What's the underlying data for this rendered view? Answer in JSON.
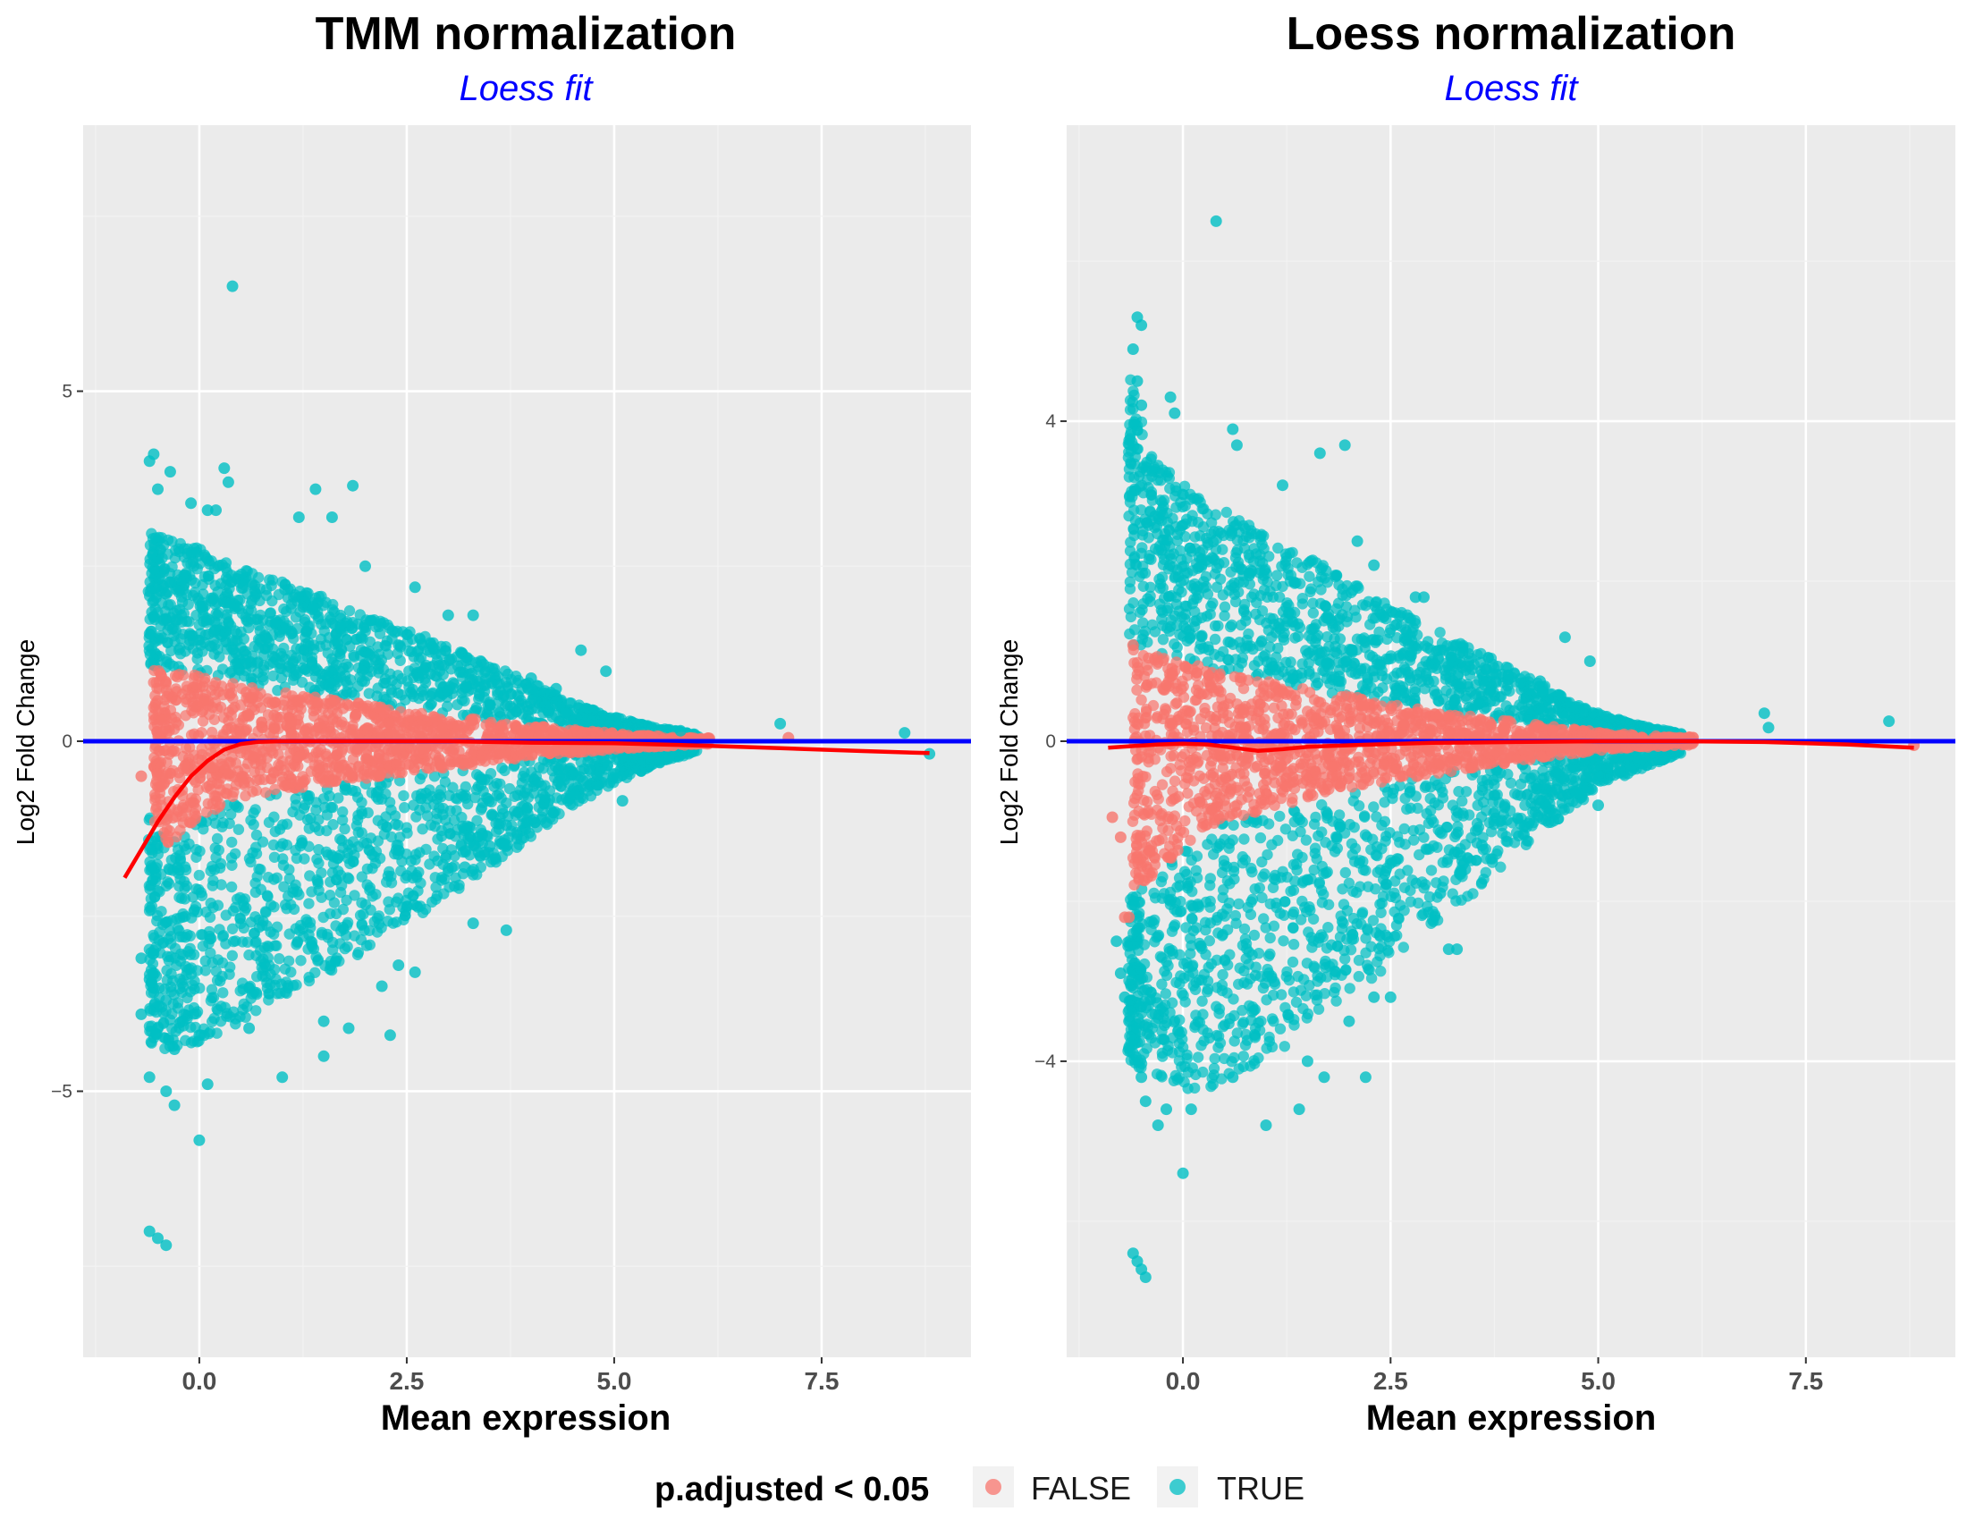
{
  "colors": {
    "false_points": "#F8766D",
    "true_points": "#00BFC4",
    "zero_line": "#0000FF",
    "loess_line": "#FF0000",
    "subtitle": "#0000FF",
    "panel_bg": "#EBEBEB",
    "grid_major": "#FFFFFF",
    "grid_minor": "#F2F2F2"
  },
  "legend": {
    "title": "p.adjusted < 0.05",
    "items": [
      {
        "label": "FALSE",
        "color": "#F8766D"
      },
      {
        "label": "TRUE",
        "color": "#00BFC4"
      }
    ],
    "position": "bottom"
  },
  "chart_data": [
    {
      "type": "scatter",
      "title": "TMM normalization",
      "subtitle": "Loess fit",
      "xlabel": "Mean expression",
      "ylabel": "Log2 Fold Change",
      "xlim": [
        -1.4,
        9.3
      ],
      "ylim": [
        -8.8,
        8.8
      ],
      "x_ticks": [
        0.0,
        2.5,
        5.0,
        7.5
      ],
      "x_tick_labels": [
        "0.0",
        "2.5",
        "5.0",
        "7.5"
      ],
      "y_ticks": [
        -5,
        0,
        5
      ],
      "y_tick_labels": [
        "−5",
        "0",
        "5"
      ],
      "grid": true,
      "hline": 0,
      "envelope": {
        "x": [
          -0.6,
          -0.4,
          0.0,
          0.5,
          1.0,
          1.5,
          2.0,
          2.5,
          3.0,
          3.5,
          4.0,
          4.5,
          5.0,
          5.5,
          6.0
        ],
        "upper": [
          3.0,
          2.9,
          2.75,
          2.5,
          2.3,
          2.05,
          1.8,
          1.6,
          1.35,
          1.1,
          0.85,
          0.55,
          0.35,
          0.2,
          0.1
        ],
        "lower": [
          -4.3,
          -4.4,
          -4.3,
          -4.0,
          -3.7,
          -3.35,
          -3.0,
          -2.6,
          -2.2,
          -1.8,
          -1.35,
          -0.95,
          -0.6,
          -0.35,
          -0.15
        ],
        "false_band": [
          1.1,
          1.0,
          0.95,
          0.8,
          0.7,
          0.62,
          0.55,
          0.45,
          0.38,
          0.3,
          0.23,
          0.17,
          0.12,
          0.08,
          0.05
        ],
        "false_band_low": [
          -1.0,
          -1.5,
          -1.1,
          -0.8,
          -0.7,
          -0.62,
          -0.55,
          -0.45,
          -0.38,
          -0.3,
          -0.23,
          -0.17,
          -0.12,
          -0.08,
          -0.05
        ]
      },
      "series": [
        {
          "name": "TRUE",
          "points": [
            [
              0.4,
              6.5
            ],
            [
              -0.55,
              4.1
            ],
            [
              -0.6,
              4.0
            ],
            [
              -0.35,
              3.85
            ],
            [
              0.3,
              3.9
            ],
            [
              0.35,
              3.7
            ],
            [
              -0.5,
              3.6
            ],
            [
              1.4,
              3.6
            ],
            [
              1.85,
              3.65
            ],
            [
              0.1,
              3.3
            ],
            [
              -0.1,
              3.4
            ],
            [
              0.2,
              3.3
            ],
            [
              1.2,
              3.2
            ],
            [
              1.6,
              3.2
            ],
            [
              2.0,
              2.5
            ],
            [
              2.6,
              2.2
            ],
            [
              3.3,
              1.8
            ],
            [
              3.0,
              1.8
            ],
            [
              4.6,
              1.3
            ],
            [
              4.9,
              1.0
            ],
            [
              4.0,
              0.9
            ],
            [
              4.3,
              0.75
            ],
            [
              5.8,
              0.15
            ],
            [
              7.0,
              0.25
            ],
            [
              8.5,
              0.12
            ],
            [
              8.8,
              -0.18
            ],
            [
              5.1,
              -0.85
            ],
            [
              4.7,
              -0.4
            ],
            [
              4.4,
              -0.55
            ],
            [
              3.7,
              -1.2
            ],
            [
              3.5,
              -1.5
            ],
            [
              3.2,
              -1.8
            ],
            [
              3.3,
              -2.6
            ],
            [
              3.7,
              -2.7
            ],
            [
              2.4,
              -3.2
            ],
            [
              2.2,
              -3.5
            ],
            [
              2.6,
              -3.3
            ],
            [
              2.3,
              -4.2
            ],
            [
              1.5,
              -4.0
            ],
            [
              1.8,
              -4.1
            ],
            [
              1.0,
              -4.8
            ],
            [
              1.5,
              -4.5
            ],
            [
              0.6,
              -4.1
            ],
            [
              0.1,
              -4.9
            ],
            [
              0.0,
              -5.7
            ],
            [
              -0.7,
              -3.1
            ],
            [
              -0.6,
              -3.4
            ],
            [
              -0.4,
              -3.7
            ],
            [
              -0.2,
              -4.0
            ],
            [
              0.0,
              -4.2
            ],
            [
              -0.7,
              -3.9
            ],
            [
              -0.5,
              -4.1
            ],
            [
              -0.3,
              -4.4
            ],
            [
              -0.6,
              -4.8
            ],
            [
              -0.4,
              -5.0
            ],
            [
              -0.3,
              -5.2
            ],
            [
              -0.6,
              -7.0
            ],
            [
              -0.5,
              -7.1
            ],
            [
              -0.4,
              -7.2
            ]
          ]
        },
        {
          "name": "FALSE",
          "points": [
            [
              -0.7,
              -0.5
            ],
            [
              7.1,
              0.05
            ],
            [
              6.1,
              0.0
            ],
            [
              5.7,
              0.02
            ],
            [
              5.5,
              -0.05
            ]
          ]
        }
      ],
      "loess_fit": {
        "x": [
          -0.9,
          -0.7,
          -0.5,
          -0.3,
          -0.1,
          0.1,
          0.3,
          0.5,
          0.7,
          1.0,
          2.0,
          3.0,
          4.0,
          5.0,
          6.0,
          7.0,
          8.0,
          8.8
        ],
        "y": [
          -1.95,
          -1.55,
          -1.15,
          -0.8,
          -0.5,
          -0.28,
          -0.12,
          -0.04,
          -0.01,
          0.0,
          0.0,
          0.0,
          -0.02,
          -0.03,
          -0.06,
          -0.1,
          -0.14,
          -0.17
        ]
      }
    },
    {
      "type": "scatter",
      "title": "Loess normalization",
      "subtitle": "Loess fit",
      "xlabel": "Mean expression",
      "ylabel": "Log2 Fold Change",
      "xlim": [
        -1.4,
        9.3
      ],
      "ylim": [
        -7.7,
        7.7
      ],
      "x_ticks": [
        0.0,
        2.5,
        5.0,
        7.5
      ],
      "x_tick_labels": [
        "0.0",
        "2.5",
        "5.0",
        "7.5"
      ],
      "y_ticks": [
        -4,
        0,
        4
      ],
      "y_tick_labels": [
        "−4",
        "0",
        "4"
      ],
      "grid": true,
      "hline": 0,
      "envelope": {
        "x": [
          -0.65,
          -0.4,
          0.0,
          0.5,
          1.0,
          1.5,
          2.0,
          2.5,
          3.0,
          3.5,
          4.0,
          4.5,
          5.0,
          5.5,
          6.0
        ],
        "upper": [
          4.6,
          3.6,
          3.2,
          2.9,
          2.6,
          2.3,
          2.0,
          1.7,
          1.45,
          1.15,
          0.9,
          0.6,
          0.35,
          0.2,
          0.1
        ],
        "lower": [
          -4.0,
          -4.2,
          -4.4,
          -4.3,
          -4.0,
          -3.6,
          -3.2,
          -2.8,
          -2.3,
          -1.9,
          -1.4,
          -1.0,
          -0.6,
          -0.35,
          -0.15
        ],
        "false_band": [
          1.2,
          1.15,
          1.0,
          0.85,
          0.75,
          0.65,
          0.57,
          0.47,
          0.4,
          0.32,
          0.25,
          0.18,
          0.12,
          0.08,
          0.05
        ],
        "false_band_low": [
          -1.9,
          -1.8,
          -1.3,
          -1.0,
          -0.85,
          -0.72,
          -0.6,
          -0.5,
          -0.42,
          -0.34,
          -0.26,
          -0.18,
          -0.12,
          -0.08,
          -0.05
        ]
      },
      "series": [
        {
          "name": "TRUE",
          "points": [
            [
              0.4,
              6.5
            ],
            [
              -0.55,
              5.3
            ],
            [
              -0.5,
              5.2
            ],
            [
              -0.6,
              4.9
            ],
            [
              -0.55,
              4.5
            ],
            [
              -0.5,
              4.2
            ],
            [
              -0.15,
              4.3
            ],
            [
              -0.1,
              4.1
            ],
            [
              0.6,
              3.9
            ],
            [
              0.65,
              3.7
            ],
            [
              1.65,
              3.6
            ],
            [
              1.95,
              3.7
            ],
            [
              1.2,
              3.2
            ],
            [
              2.1,
              2.5
            ],
            [
              2.3,
              2.2
            ],
            [
              2.9,
              1.8
            ],
            [
              2.8,
              1.8
            ],
            [
              4.6,
              1.3
            ],
            [
              4.9,
              1.0
            ],
            [
              4.3,
              0.75
            ],
            [
              7.0,
              0.35
            ],
            [
              7.05,
              0.17
            ],
            [
              8.5,
              0.25
            ],
            [
              5.0,
              -0.8
            ],
            [
              4.5,
              -0.6
            ],
            [
              3.6,
              -1.3
            ],
            [
              3.4,
              -1.6
            ],
            [
              3.1,
              -1.9
            ],
            [
              3.2,
              -2.6
            ],
            [
              3.3,
              -2.6
            ],
            [
              2.3,
              -3.2
            ],
            [
              2.0,
              -3.5
            ],
            [
              2.5,
              -3.2
            ],
            [
              2.2,
              -4.2
            ],
            [
              1.5,
              -4.0
            ],
            [
              1.7,
              -4.2
            ],
            [
              1.0,
              -4.8
            ],
            [
              1.4,
              -4.6
            ],
            [
              0.6,
              -4.2
            ],
            [
              0.1,
              -4.6
            ],
            [
              0.0,
              -5.4
            ],
            [
              -0.8,
              -2.5
            ],
            [
              -0.75,
              -2.9
            ],
            [
              -0.7,
              -3.2
            ],
            [
              -0.65,
              -3.5
            ],
            [
              -0.6,
              -3.9
            ],
            [
              -0.5,
              -4.2
            ],
            [
              -0.45,
              -4.5
            ],
            [
              -0.6,
              -6.4
            ],
            [
              -0.55,
              -6.5
            ],
            [
              -0.5,
              -6.6
            ],
            [
              -0.45,
              -6.7
            ],
            [
              -0.3,
              -4.8
            ],
            [
              -0.2,
              -4.6
            ]
          ]
        },
        {
          "name": "FALSE",
          "points": [
            [
              -0.85,
              -0.95
            ],
            [
              -0.75,
              -1.2
            ],
            [
              -0.7,
              -2.2
            ],
            [
              -0.65,
              -2.2
            ],
            [
              -0.6,
              1.2
            ],
            [
              6.1,
              0.05
            ],
            [
              5.8,
              0.02
            ],
            [
              8.8,
              -0.05
            ]
          ]
        }
      ],
      "loess_fit": {
        "x": [
          -0.9,
          -0.6,
          -0.3,
          0.0,
          0.3,
          0.6,
          0.9,
          1.2,
          1.5,
          2.0,
          3.0,
          4.0,
          5.0,
          6.0,
          7.0,
          8.0,
          8.8
        ],
        "y": [
          -0.08,
          -0.06,
          -0.04,
          -0.03,
          -0.04,
          -0.08,
          -0.12,
          -0.1,
          -0.07,
          -0.05,
          -0.02,
          -0.01,
          0.0,
          0.0,
          -0.01,
          -0.04,
          -0.08
        ]
      }
    }
  ]
}
